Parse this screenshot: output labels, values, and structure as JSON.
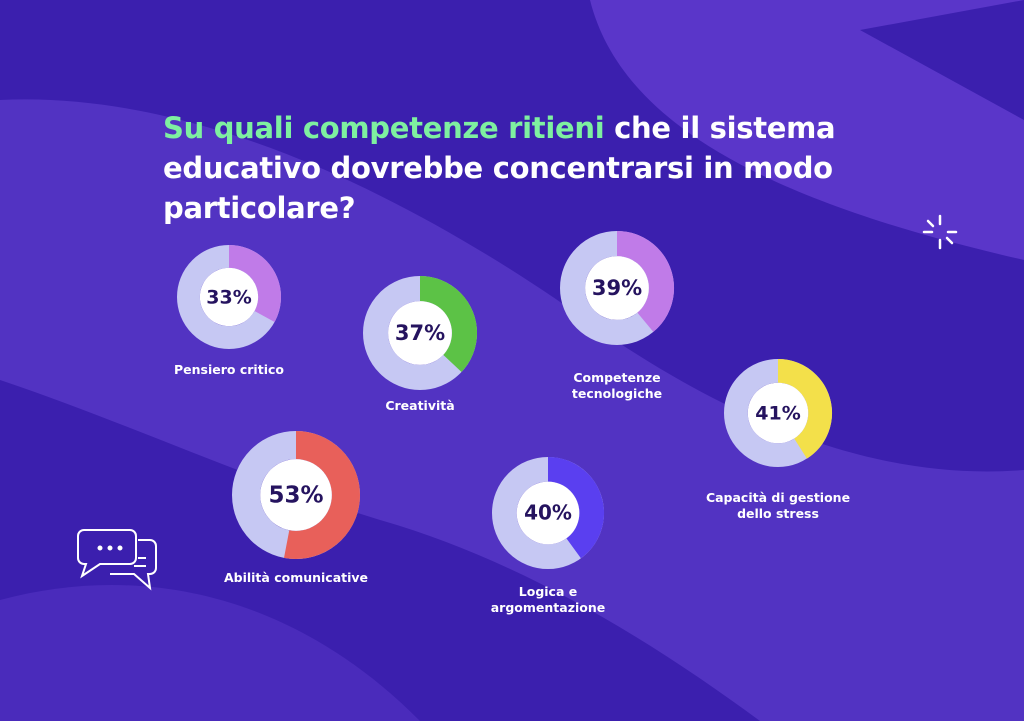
{
  "title": {
    "highlight": "Su quali competenze ritieni",
    "rest": "che il sistema educativo dovrebbe concentrarsi in modo particolare?"
  },
  "chart_data": [
    {
      "type": "donut",
      "title": "Pensiero critico",
      "values": [
        33
      ],
      "value_labels": [
        "33%"
      ],
      "color": "#c07be8"
    },
    {
      "type": "donut",
      "title": "Creatività",
      "values": [
        37
      ],
      "value_labels": [
        "37%"
      ],
      "color": "#5cc246"
    },
    {
      "type": "donut",
      "title": "Competenze tecnologiche",
      "values": [
        39
      ],
      "value_labels": [
        "39%"
      ],
      "color": "#c07be8"
    },
    {
      "type": "donut",
      "title": "Capacità di gestione dello stress",
      "values": [
        41
      ],
      "value_labels": [
        "41%"
      ],
      "color": "#f3e04a"
    },
    {
      "type": "donut",
      "title": "Abilità comunicative",
      "values": [
        53
      ],
      "value_labels": [
        "53%"
      ],
      "color": "#e8605a"
    },
    {
      "type": "donut",
      "title": "Logica e argomentazione",
      "values": [
        40
      ],
      "value_labels": [
        "40%"
      ],
      "color": "#5a3ff0"
    }
  ]
}
